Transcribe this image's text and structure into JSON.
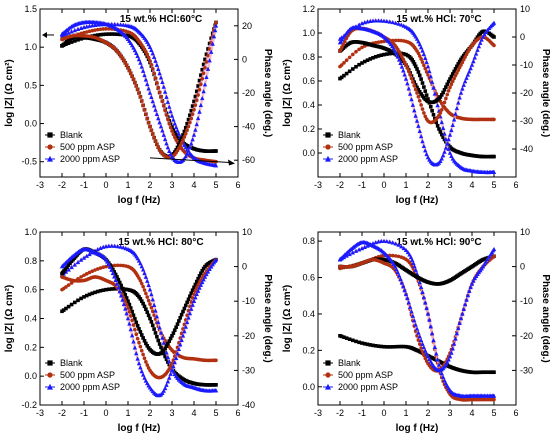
{
  "colors": {
    "Blank": "#000000",
    "500 ppm ASP": "#b03010",
    "2000 ppm ASP": "#1a1aff",
    "fit": "#f2a6c0"
  },
  "chart_data": [
    {
      "type": "scatter",
      "title": "15 wt.% HCl:60°C",
      "xlabel": "log f (Hz)",
      "ylabel": "log |Z| (Ω cm²)",
      "y2label": "Phase angle (deg.)",
      "xlim": [
        -3,
        6
      ],
      "ylim": [
        -0.7,
        1.5
      ],
      "y2lim": [
        -70,
        30
      ],
      "xticks": [
        -3,
        -2,
        -1,
        0,
        1,
        2,
        3,
        4,
        5,
        6
      ],
      "yticks": [
        -0.5,
        0.0,
        0.5,
        1.0,
        1.5
      ],
      "y2ticks": [
        -60,
        -40,
        -20,
        0,
        20
      ],
      "legend": "bottom-left",
      "arrows": [
        "left",
        "right"
      ],
      "series": [
        {
          "name": "Blank",
          "marker": "square",
          "axis": "left",
          "x": [
            -2.0,
            -1.0,
            0.0,
            1.0,
            1.5,
            2.0,
            2.5,
            3.0,
            3.5,
            4.0,
            4.5,
            5.0
          ],
          "values": [
            1.02,
            1.12,
            1.17,
            1.15,
            1.05,
            0.8,
            0.35,
            -0.05,
            -0.25,
            -0.33,
            -0.36,
            -0.36
          ]
        },
        {
          "name": "500 ppm ASP",
          "marker": "circle",
          "axis": "left",
          "x": [
            -2.0,
            -1.0,
            0.0,
            1.0,
            1.5,
            2.0,
            2.5,
            3.0,
            3.5,
            4.0,
            4.5,
            5.0
          ],
          "values": [
            1.1,
            1.19,
            1.24,
            1.2,
            1.08,
            0.82,
            0.35,
            -0.1,
            -0.35,
            -0.45,
            -0.48,
            -0.5
          ]
        },
        {
          "name": "2000 ppm ASP",
          "marker": "triangle",
          "axis": "left",
          "x": [
            -2.0,
            -1.0,
            0.0,
            1.0,
            1.5,
            2.0,
            2.5,
            3.0,
            3.5,
            4.0,
            4.5,
            5.0
          ],
          "values": [
            1.15,
            1.26,
            1.3,
            1.28,
            1.2,
            1.0,
            0.6,
            0.1,
            -0.25,
            -0.45,
            -0.52,
            -0.55
          ]
        },
        {
          "name": "Blank",
          "marker": "square",
          "axis": "right",
          "x": [
            -2.0,
            -1.5,
            -1.0,
            -0.5,
            0.0,
            0.5,
            1.0,
            1.5,
            2.0,
            2.5,
            3.0,
            3.5,
            4.0,
            4.5,
            5.0
          ],
          "values": [
            8,
            13,
            13,
            12,
            10,
            5,
            -5,
            -20,
            -40,
            -55,
            -57,
            -45,
            -25,
            0,
            22
          ]
        },
        {
          "name": "500 ppm ASP",
          "marker": "circle",
          "axis": "right",
          "x": [
            -2.0,
            -1.5,
            -1.0,
            -0.5,
            0.0,
            0.5,
            1.0,
            1.5,
            2.0,
            2.5,
            3.0,
            3.5,
            4.0,
            4.5,
            5.0
          ],
          "values": [
            12,
            14,
            14,
            13,
            10,
            5,
            -5,
            -20,
            -40,
            -55,
            -58,
            -48,
            -30,
            -5,
            22
          ]
        },
        {
          "name": "2000 ppm ASP",
          "marker": "triangle",
          "axis": "right",
          "x": [
            -2.0,
            -1.5,
            -1.0,
            -0.5,
            0.0,
            0.5,
            1.0,
            1.5,
            2.0,
            2.5,
            3.0,
            3.5,
            4.0,
            4.5,
            5.0
          ],
          "values": [
            15,
            20,
            22,
            22,
            21,
            18,
            12,
            0,
            -20,
            -40,
            -58,
            -60,
            -45,
            -15,
            20
          ]
        }
      ]
    },
    {
      "type": "scatter",
      "title": "15 wt.% HCl: 70°C",
      "xlabel": "log f (Hz)",
      "ylabel": "log |Z| (Ω cm²)",
      "y2label": "Phase angle (deg.)",
      "xlim": [
        -3,
        6
      ],
      "ylim": [
        -0.2,
        1.2
      ],
      "y2lim": [
        -50,
        10
      ],
      "xticks": [
        -3,
        -2,
        -1,
        0,
        1,
        2,
        3,
        4,
        5,
        6
      ],
      "yticks": [
        0.0,
        0.2,
        0.4,
        0.6,
        0.8,
        1.0,
        1.2
      ],
      "y2ticks": [
        -40,
        -30,
        -20,
        -10,
        0,
        10
      ],
      "legend": "bottom-left",
      "series": [
        {
          "name": "Blank",
          "marker": "square",
          "axis": "left",
          "x": [
            -2.0,
            -1.0,
            0.0,
            1.0,
            1.5,
            2.0,
            2.5,
            3.0,
            3.5,
            4.0,
            4.5,
            5.0
          ],
          "values": [
            0.62,
            0.75,
            0.82,
            0.82,
            0.7,
            0.45,
            0.2,
            0.05,
            0.0,
            -0.02,
            -0.03,
            -0.03
          ]
        },
        {
          "name": "500 ppm ASP",
          "marker": "circle",
          "axis": "left",
          "x": [
            -2.0,
            -1.0,
            0.0,
            1.0,
            1.5,
            2.0,
            2.5,
            3.0,
            3.5,
            4.0,
            4.5,
            5.0
          ],
          "values": [
            0.72,
            0.88,
            0.93,
            0.93,
            0.85,
            0.65,
            0.45,
            0.33,
            0.29,
            0.28,
            0.28,
            0.28
          ]
        },
        {
          "name": "2000 ppm ASP",
          "marker": "triangle",
          "axis": "left",
          "x": [
            -2.0,
            -1.0,
            0.0,
            1.0,
            1.5,
            2.0,
            2.5,
            3.0,
            3.5,
            4.0,
            4.5,
            5.0
          ],
          "values": [
            0.95,
            1.08,
            1.1,
            1.05,
            0.95,
            0.72,
            0.35,
            0.0,
            -0.12,
            -0.15,
            -0.16,
            -0.16
          ]
        },
        {
          "name": "Blank",
          "marker": "square",
          "axis": "right",
          "x": [
            -2.0,
            -1.5,
            -1.0,
            -0.5,
            0.0,
            0.5,
            1.0,
            1.5,
            2.0,
            2.5,
            3.0,
            3.5,
            4.0,
            4.5,
            5.0
          ],
          "values": [
            -5,
            -2,
            -2,
            -3,
            -4,
            -6,
            -10,
            -18,
            -23,
            -22,
            -15,
            -8,
            -3,
            2,
            0
          ]
        },
        {
          "name": "500 ppm ASP",
          "marker": "circle",
          "axis": "right",
          "x": [
            -2.0,
            -1.5,
            -1.0,
            -0.5,
            0.0,
            0.5,
            1.0,
            1.5,
            2.0,
            2.5,
            3.0,
            3.5,
            4.0,
            4.5,
            5.0
          ],
          "values": [
            -5,
            2,
            3,
            2,
            0,
            -3,
            -10,
            -20,
            -30,
            -28,
            -18,
            -10,
            -3,
            0,
            -3
          ]
        },
        {
          "name": "2000 ppm ASP",
          "marker": "triangle",
          "axis": "right",
          "x": [
            -2.0,
            -1.5,
            -1.0,
            -0.5,
            0.0,
            0.5,
            1.0,
            1.5,
            2.0,
            2.5,
            3.0,
            3.5,
            4.0,
            4.5,
            5.0
          ],
          "values": [
            -2,
            3,
            3,
            2,
            0,
            -5,
            -15,
            -30,
            -43,
            -45,
            -35,
            -20,
            -10,
            0,
            5
          ]
        }
      ]
    },
    {
      "type": "scatter",
      "title": "15 wt.% HCl: 80°C",
      "xlabel": "log f (Hz)",
      "ylabel": "log |Z| (Ω cm²)",
      "y2label": "Phase angle (deg.)",
      "xlim": [
        -3,
        6
      ],
      "ylim": [
        -0.2,
        1.0
      ],
      "y2lim": [
        -40,
        10
      ],
      "xticks": [
        -3,
        -2,
        -1,
        0,
        1,
        2,
        3,
        4,
        5,
        6
      ],
      "yticks": [
        -0.2,
        0.0,
        0.2,
        0.4,
        0.6,
        0.8,
        1.0
      ],
      "y2ticks": [
        -40,
        -30,
        -20,
        -10,
        0,
        10
      ],
      "legend": "bottom-left",
      "series": [
        {
          "name": "Blank",
          "marker": "square",
          "axis": "left",
          "x": [
            -2.0,
            -1.0,
            0.0,
            1.0,
            1.5,
            2.0,
            2.5,
            3.0,
            3.5,
            4.0,
            4.5,
            5.0
          ],
          "values": [
            0.45,
            0.55,
            0.6,
            0.6,
            0.55,
            0.4,
            0.2,
            0.05,
            -0.02,
            -0.05,
            -0.06,
            -0.06
          ]
        },
        {
          "name": "500 ppm ASP",
          "marker": "circle",
          "axis": "left",
          "x": [
            -2.0,
            -1.0,
            0.0,
            1.0,
            1.5,
            2.0,
            2.5,
            3.0,
            3.5,
            4.0,
            4.5,
            5.0
          ],
          "values": [
            0.6,
            0.7,
            0.76,
            0.76,
            0.68,
            0.5,
            0.3,
            0.18,
            0.13,
            0.12,
            0.11,
            0.11
          ]
        },
        {
          "name": "2000 ppm ASP",
          "marker": "triangle",
          "axis": "left",
          "x": [
            -2.0,
            -1.0,
            0.0,
            1.0,
            1.5,
            2.0,
            2.5,
            3.0,
            3.5,
            4.0,
            4.5,
            5.0
          ],
          "values": [
            0.7,
            0.82,
            0.9,
            0.88,
            0.8,
            0.6,
            0.3,
            0.05,
            -0.05,
            -0.08,
            -0.1,
            -0.1
          ]
        },
        {
          "name": "Blank",
          "marker": "square",
          "axis": "right",
          "x": [
            -2.0,
            -1.5,
            -1.0,
            -0.5,
            0.0,
            0.5,
            1.0,
            1.5,
            2.0,
            2.5,
            3.0,
            3.5,
            4.0,
            4.5,
            5.0
          ],
          "values": [
            -2,
            2,
            5,
            4,
            2,
            -3,
            -10,
            -18,
            -24,
            -25,
            -20,
            -13,
            -6,
            0,
            2
          ]
        },
        {
          "name": "500 ppm ASP",
          "marker": "circle",
          "axis": "right",
          "x": [
            -2.0,
            -1.5,
            -1.0,
            -0.5,
            0.0,
            0.5,
            1.0,
            1.5,
            2.0,
            2.5,
            3.0,
            3.5,
            4.0,
            4.5,
            5.0
          ],
          "values": [
            -3,
            -4,
            -4,
            -3,
            -4,
            -6,
            -12,
            -22,
            -30,
            -32,
            -28,
            -18,
            -8,
            -2,
            2
          ]
        },
        {
          "name": "2000 ppm ASP",
          "marker": "triangle",
          "axis": "right",
          "x": [
            -2.0,
            -1.5,
            -1.0,
            -0.5,
            0.0,
            0.5,
            1.0,
            1.5,
            2.0,
            2.5,
            3.0,
            3.5,
            4.0,
            4.5,
            5.0
          ],
          "values": [
            0,
            3,
            5,
            4,
            2,
            -5,
            -15,
            -28,
            -35,
            -37,
            -30,
            -20,
            -10,
            -3,
            2
          ]
        }
      ]
    },
    {
      "type": "scatter",
      "title": "15 wt.% HCl: 90°C",
      "xlabel": "log f (Hz)",
      "ylabel": "log |Z| (Ω cm²)",
      "y2label": "Phase angle (deg.)",
      "xlim": [
        -3,
        6
      ],
      "ylim": [
        -0.1,
        0.85
      ],
      "y2lim": [
        -40,
        10
      ],
      "xticks": [
        -3,
        -2,
        -1,
        0,
        1,
        2,
        3,
        4,
        5,
        6
      ],
      "yticks": [
        0.0,
        0.2,
        0.4,
        0.6,
        0.8
      ],
      "y2ticks": [
        -30,
        -20,
        -10,
        0,
        10
      ],
      "legend": "bottom-left",
      "series": [
        {
          "name": "Blank",
          "marker": "square",
          "axis": "left",
          "x": [
            -2.0,
            -1.0,
            0.0,
            1.0,
            1.5,
            2.0,
            2.5,
            3.0,
            3.5,
            4.0,
            4.5,
            5.0
          ],
          "values": [
            0.28,
            0.24,
            0.22,
            0.22,
            0.2,
            0.17,
            0.14,
            0.11,
            0.09,
            0.08,
            0.08,
            0.08
          ]
        },
        {
          "name": "500 ppm ASP",
          "marker": "circle",
          "axis": "left",
          "x": [
            -2.0,
            -1.0,
            0.0,
            1.0,
            1.5,
            2.0,
            2.5,
            3.0,
            3.5,
            4.0,
            4.5,
            5.0
          ],
          "values": [
            0.65,
            0.68,
            0.72,
            0.7,
            0.6,
            0.4,
            0.1,
            -0.04,
            -0.07,
            -0.07,
            -0.07,
            -0.07
          ]
        },
        {
          "name": "2000 ppm ASP",
          "marker": "triangle",
          "axis": "left",
          "x": [
            -2.0,
            -1.0,
            0.0,
            1.0,
            1.5,
            2.0,
            2.5,
            3.0,
            3.5,
            4.0,
            4.5,
            5.0
          ],
          "values": [
            0.7,
            0.76,
            0.8,
            0.75,
            0.62,
            0.4,
            0.12,
            -0.02,
            -0.05,
            -0.05,
            -0.05,
            -0.05
          ]
        },
        {
          "name": "Blank",
          "marker": "square",
          "axis": "right",
          "x": [
            -2.0,
            -1.5,
            -1.0,
            -0.5,
            0.0,
            0.5,
            1.0,
            1.5,
            2.0,
            2.5,
            3.0,
            3.5,
            4.0,
            4.5,
            5.0
          ],
          "values": [
            0,
            0,
            1,
            2,
            2,
            1,
            -1,
            -3,
            -4.5,
            -5,
            -4,
            -2,
            0,
            2,
            3
          ]
        },
        {
          "name": "500 ppm ASP",
          "marker": "circle",
          "axis": "right",
          "x": [
            -2.0,
            -1.5,
            -1.0,
            -0.5,
            0.0,
            0.5,
            1.0,
            1.5,
            2.0,
            2.5,
            3.0,
            3.5,
            4.0,
            4.5,
            5.0
          ],
          "values": [
            0,
            0,
            1,
            2,
            1,
            -1,
            -8,
            -20,
            -28,
            -30,
            -25,
            -15,
            -5,
            0,
            3
          ]
        },
        {
          "name": "2000 ppm ASP",
          "marker": "triangle",
          "axis": "right",
          "x": [
            -2.0,
            -1.5,
            -1.0,
            -0.5,
            0.0,
            0.5,
            1.0,
            1.5,
            2.0,
            2.5,
            3.0,
            3.5,
            4.0,
            4.5,
            5.0
          ],
          "values": [
            2,
            5,
            7,
            6,
            4,
            0,
            -8,
            -18,
            -26,
            -30,
            -26,
            -15,
            -5,
            0,
            5
          ]
        }
      ]
    }
  ]
}
